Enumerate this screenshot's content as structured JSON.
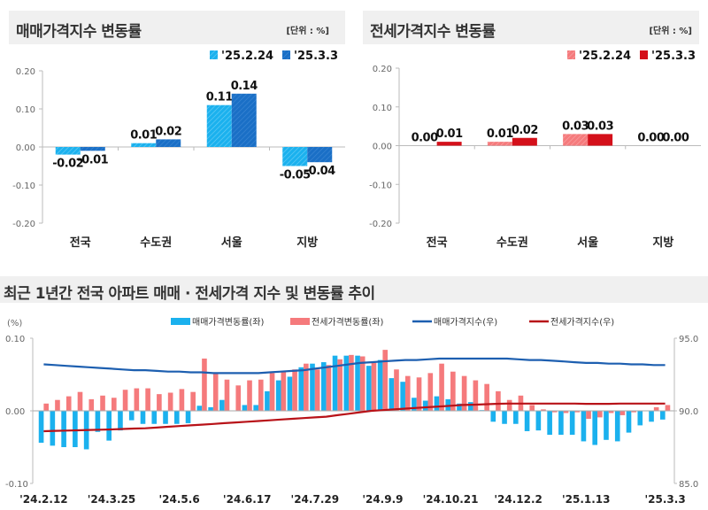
{
  "colors": {
    "sale_prev": "#1bb1ee",
    "sale_cur": "#1a6fc6",
    "jeonse_prev": "#f57a7c",
    "jeonse_cur": "#d4101a",
    "sale_index_line": "#1d5fb0",
    "jeonse_index_line": "#b81218",
    "header_bg": "#f0f0f0"
  },
  "chart_data": [
    {
      "type": "bar",
      "title": "매매가격지수 변동률",
      "unit": "[단위 : %]",
      "categories": [
        "전국",
        "수도권",
        "서울",
        "지방"
      ],
      "series": [
        {
          "name": "'25.2.24",
          "values": [
            -0.02,
            0.01,
            0.11,
            -0.05
          ],
          "labels": [
            "-0.02",
            "0.01",
            "0.11",
            "-0.05"
          ]
        },
        {
          "name": "'25.3.3",
          "values": [
            -0.01,
            0.02,
            0.14,
            -0.04
          ],
          "labels": [
            "-0.01",
            "0.02",
            "0.14",
            "-0.04"
          ]
        }
      ],
      "ylim": [
        -0.2,
        0.2
      ],
      "yticks": [
        "0.20",
        "0.10",
        "0.00",
        "-0.10",
        "-0.20"
      ],
      "legend": "top-right"
    },
    {
      "type": "bar",
      "title": "전세가격지수 변동률",
      "unit": "[단위 : %]",
      "categories": [
        "전국",
        "수도권",
        "서울",
        "지방"
      ],
      "series": [
        {
          "name": "'25.2.24",
          "values": [
            0.0,
            0.01,
            0.03,
            0.0
          ],
          "labels": [
            "0.00",
            "0.01",
            "0.03",
            "0.00"
          ]
        },
        {
          "name": "'25.3.3",
          "values": [
            0.01,
            0.02,
            0.03,
            0.0
          ],
          "labels": [
            "0.01",
            "0.02",
            "0.03",
            "0.00"
          ]
        }
      ],
      "ylim": [
        -0.2,
        0.2
      ],
      "yticks": [
        "0.20",
        "0.10",
        "0.00",
        "-0.10",
        "-0.20"
      ],
      "legend": "top-right"
    },
    {
      "type": "bar+line",
      "title": "최근 1년간 전국 아파트 매매 · 전세가격 지수 및 변동률 추이",
      "ylabel": "(%)",
      "ylim": [
        -0.1,
        0.1
      ],
      "yticks": [
        "0.10",
        "0.00",
        "-0.10"
      ],
      "y2lim": [
        85,
        95
      ],
      "y2ticks": [
        "95.0",
        "90.0",
        "85.0"
      ],
      "xticks": [
        {
          "index": 0,
          "label": "'24.2.12"
        },
        {
          "index": 6,
          "label": "'24.3.25"
        },
        {
          "index": 12,
          "label": "'24.5.6"
        },
        {
          "index": 18,
          "label": "'24.6.17"
        },
        {
          "index": 24,
          "label": "'24.7.29"
        },
        {
          "index": 30,
          "label": "'24.9.9"
        },
        {
          "index": 36,
          "label": "'24.10.21"
        },
        {
          "index": 42,
          "label": "'24.12.2"
        },
        {
          "index": 48,
          "label": "'25.1.13"
        },
        {
          "index": 55,
          "label": "'25.3.3"
        }
      ],
      "legend": "top",
      "series": [
        {
          "name": "매매가격변동률(좌)",
          "kind": "bar",
          "axis": "left",
          "values": [
            -0.044,
            -0.048,
            -0.05,
            -0.05,
            -0.053,
            -0.029,
            -0.041,
            -0.027,
            -0.013,
            -0.018,
            -0.018,
            -0.018,
            -0.018,
            -0.017,
            0.007,
            0.005,
            0.015,
            0.0,
            0.008,
            0.008,
            0.027,
            0.042,
            0.047,
            0.06,
            0.065,
            0.067,
            0.076,
            0.076,
            0.076,
            0.062,
            0.07,
            0.045,
            0.04,
            0.018,
            0.014,
            0.02,
            0.016,
            0.01,
            0.012,
            0.001,
            -0.015,
            -0.018,
            -0.018,
            -0.028,
            -0.027,
            -0.033,
            -0.033,
            -0.033,
            -0.042,
            -0.047,
            -0.04,
            -0.042,
            -0.03,
            -0.02,
            -0.015,
            -0.012
          ]
        },
        {
          "name": "전세가격변동률(좌)",
          "kind": "bar",
          "axis": "left",
          "values": [
            0.01,
            0.015,
            0.02,
            0.026,
            0.016,
            0.021,
            0.018,
            0.029,
            0.031,
            0.031,
            0.023,
            0.025,
            0.03,
            0.026,
            0.072,
            0.052,
            0.043,
            0.035,
            0.042,
            0.043,
            0.052,
            0.054,
            0.057,
            0.065,
            0.057,
            0.063,
            0.071,
            0.077,
            0.075,
            0.066,
            0.084,
            0.057,
            0.048,
            0.046,
            0.052,
            0.065,
            0.054,
            0.048,
            0.042,
            0.037,
            0.027,
            0.015,
            0.021,
            0.008,
            0.002,
            -0.002,
            -0.003,
            -0.002,
            -0.011,
            -0.009,
            -0.003,
            -0.006,
            -0.002,
            0.0,
            0.005,
            0.008
          ]
        },
        {
          "name": "매매가격지수(우)",
          "kind": "line",
          "axis": "right",
          "values": [
            93.2,
            93.15,
            93.1,
            93.05,
            93.0,
            92.95,
            92.9,
            92.85,
            92.8,
            92.8,
            92.75,
            92.7,
            92.7,
            92.65,
            92.65,
            92.6,
            92.6,
            92.6,
            92.6,
            92.6,
            92.65,
            92.7,
            92.75,
            92.8,
            92.9,
            93.0,
            93.1,
            93.2,
            93.3,
            93.35,
            93.4,
            93.45,
            93.5,
            93.5,
            93.55,
            93.6,
            93.6,
            93.6,
            93.6,
            93.6,
            93.6,
            93.6,
            93.55,
            93.5,
            93.5,
            93.45,
            93.4,
            93.35,
            93.3,
            93.3,
            93.25,
            93.25,
            93.2,
            93.2,
            93.15,
            93.15
          ]
        },
        {
          "name": "전세가격지수(우)",
          "kind": "line",
          "axis": "right",
          "values": [
            88.6,
            88.62,
            88.64,
            88.66,
            88.68,
            88.7,
            88.72,
            88.75,
            88.78,
            88.8,
            88.85,
            88.9,
            88.95,
            89.0,
            89.05,
            89.1,
            89.15,
            89.2,
            89.25,
            89.3,
            89.35,
            89.4,
            89.45,
            89.5,
            89.55,
            89.6,
            89.7,
            89.8,
            89.9,
            90.0,
            90.05,
            90.1,
            90.15,
            90.2,
            90.25,
            90.3,
            90.35,
            90.4,
            90.42,
            90.45,
            90.48,
            90.5,
            90.5,
            90.5,
            90.5,
            90.5,
            90.5,
            90.5,
            90.48,
            90.48,
            90.48,
            90.5,
            90.5,
            90.5,
            90.5,
            90.5
          ]
        }
      ]
    }
  ]
}
